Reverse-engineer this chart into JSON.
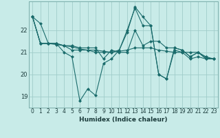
{
  "title": "",
  "xlabel": "Humidex (Indice chaleur)",
  "background_color": "#c8ebe8",
  "grid_color": "#a0ccca",
  "line_color": "#1a6b6b",
  "x": [
    0,
    1,
    2,
    3,
    4,
    5,
    6,
    7,
    8,
    9,
    10,
    11,
    12,
    13,
    14,
    15,
    16,
    17,
    18,
    19,
    20,
    21,
    22,
    23
  ],
  "series": [
    [
      22.6,
      22.3,
      21.4,
      21.4,
      21.0,
      20.8,
      18.8,
      19.35,
      19.05,
      20.5,
      20.7,
      21.1,
      21.9,
      23.05,
      22.6,
      22.2,
      20.0,
      19.8,
      21.1,
      21.0,
      20.7,
      20.8,
      20.7,
      20.7
    ],
    [
      22.6,
      21.4,
      21.4,
      21.35,
      21.3,
      21.25,
      21.15,
      21.1,
      21.1,
      21.05,
      21.0,
      21.05,
      21.1,
      21.2,
      21.2,
      21.2,
      21.1,
      21.05,
      21.0,
      21.0,
      21.0,
      21.0,
      20.75,
      20.7
    ],
    [
      22.6,
      21.4,
      21.4,
      21.4,
      21.3,
      21.3,
      21.2,
      21.2,
      21.2,
      20.7,
      21.1,
      21.0,
      21.0,
      22.0,
      21.3,
      21.5,
      21.5,
      21.2,
      21.2,
      21.1,
      20.8,
      21.0,
      20.7,
      20.7
    ],
    [
      22.6,
      21.4,
      21.4,
      21.4,
      21.3,
      21.1,
      21.1,
      21.1,
      21.0,
      21.0,
      21.0,
      21.1,
      22.0,
      23.0,
      22.2,
      22.2,
      20.0,
      19.8,
      21.2,
      21.1,
      20.8,
      21.0,
      20.8,
      20.7
    ]
  ],
  "ylim": [
    18.5,
    23.3
  ],
  "yticks": [
    19,
    20,
    21,
    22
  ],
  "xticks": [
    0,
    1,
    2,
    3,
    4,
    5,
    6,
    7,
    8,
    9,
    10,
    11,
    12,
    13,
    14,
    15,
    16,
    17,
    18,
    19,
    20,
    21,
    22,
    23
  ],
  "marker": "D",
  "markersize": 2.0,
  "linewidth": 0.8,
  "tick_fontsize": 5.5,
  "xlabel_fontsize": 6.5
}
